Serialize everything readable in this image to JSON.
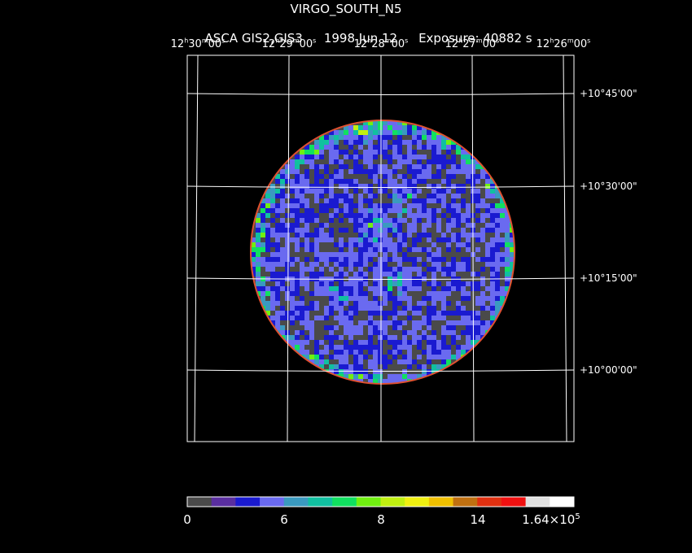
{
  "header": {
    "title": "VIRGO_SOUTH_N5",
    "instrument": "ASCA GIS2,GIS3",
    "date": "1998 Jun 12",
    "exposure": "Exposure: 40882 s"
  },
  "ra_ticks": [
    {
      "h": "12",
      "m": "30",
      "s": "00"
    },
    {
      "h": "12",
      "m": "29",
      "s": "00"
    },
    {
      "h": "12",
      "m": "28",
      "s": "00"
    },
    {
      "h": "12",
      "m": "27",
      "s": "00"
    },
    {
      "h": "12",
      "m": "26",
      "s": "00"
    }
  ],
  "dec_ticks": [
    "+10°45'00\"",
    "+10°30'00\"",
    "+10°15'00\"",
    "+10°00'00\""
  ],
  "colorbar": {
    "labels": [
      "0",
      "6",
      "8",
      "14"
    ],
    "max_label_base": "1.64×10",
    "max_label_exp": "5",
    "colors": [
      "#4a4a4a",
      "#5a2ea0",
      "#1a1ad0",
      "#6a6af0",
      "#3a9ac0",
      "#10c0a0",
      "#10e060",
      "#70f010",
      "#c0f010",
      "#f0f010",
      "#f0c000",
      "#c07010",
      "#e03010",
      "#f01010",
      "#e0e0e0",
      "#ffffff"
    ]
  },
  "palette": {
    "background": "#000000",
    "grid": "#ffffff"
  }
}
